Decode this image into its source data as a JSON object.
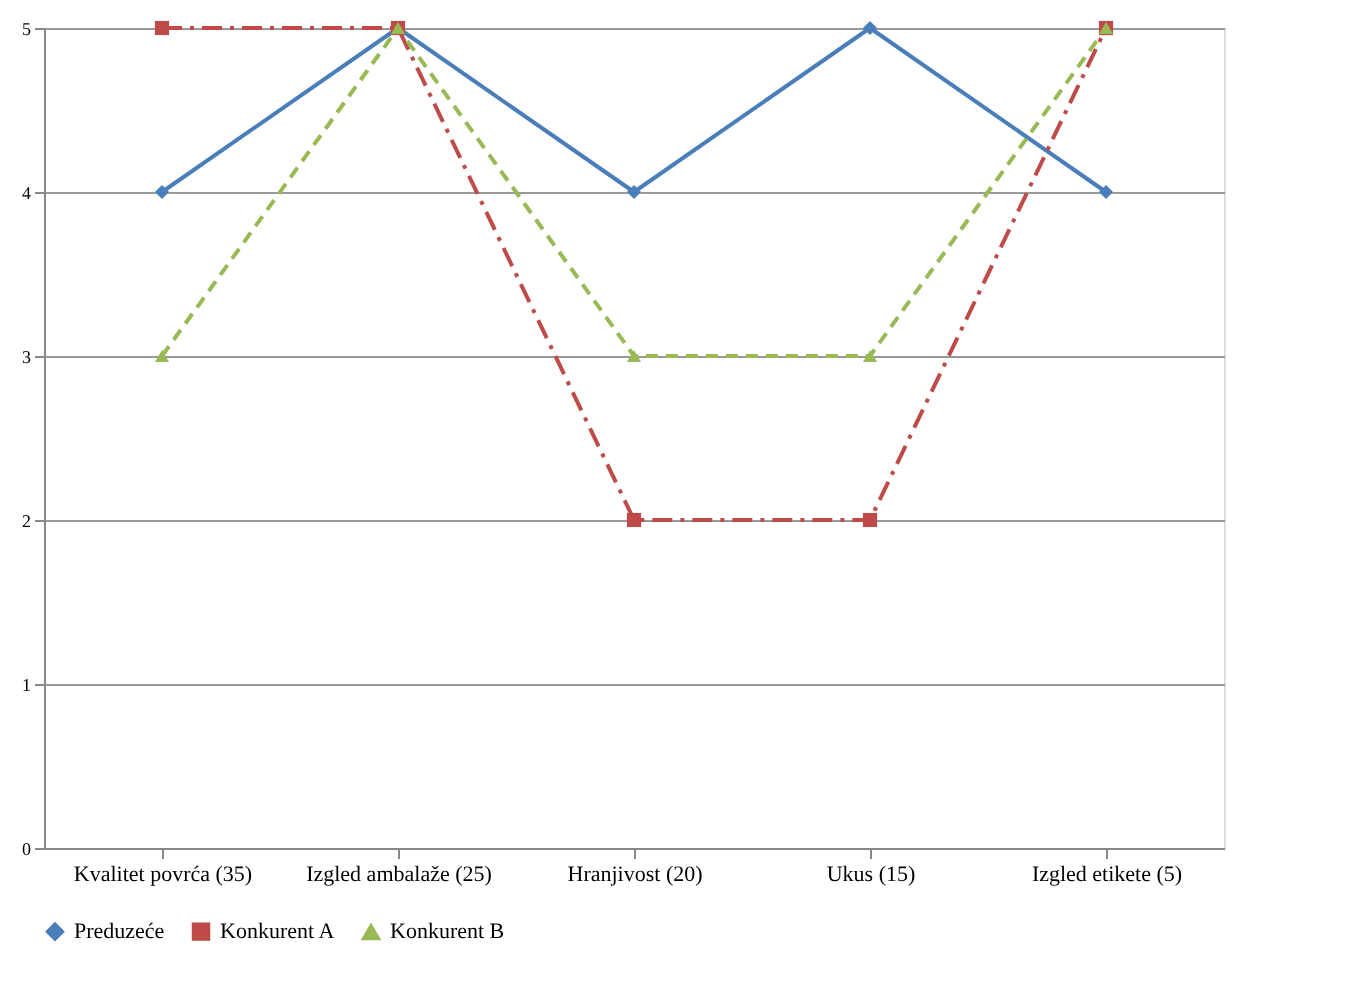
{
  "chart_data": {
    "type": "line",
    "categories": [
      "Kvalitet povrća (35)",
      "Izgled ambalaže (25)",
      "Hranjivost (20)",
      "Ukus (15)",
      "Izgled etikete (5)"
    ],
    "series": [
      {
        "name": "Preduzeće",
        "color": "#4a7ebb",
        "values": [
          4,
          5,
          4,
          5,
          4
        ],
        "marker": "diamond",
        "line_style": "solid"
      },
      {
        "name": "Konkurent A",
        "color": "#be4b48",
        "values": [
          5,
          5,
          2,
          2,
          5
        ],
        "marker": "square",
        "line_style": "dashed"
      },
      {
        "name": "Konkurent B",
        "color": "#98b954",
        "values": [
          3,
          5,
          3,
          3,
          5
        ],
        "marker": "triangle",
        "line_style": "dashed"
      }
    ],
    "ylim": [
      0,
      5
    ],
    "yticks": [
      0,
      1,
      2,
      3,
      4,
      5
    ],
    "grid": "y",
    "legend": "bottom"
  }
}
